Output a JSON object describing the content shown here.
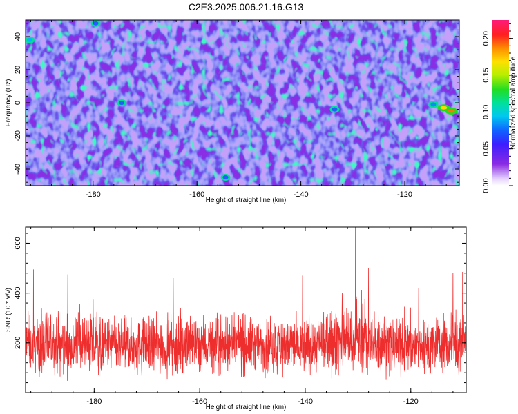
{
  "title": "C2E3.2025.006.21.16.G13",
  "chart_data": [
    {
      "type": "heatmap",
      "name": "spectrogram",
      "xlabel": "Height of straight line (km)",
      "ylabel": "Frequency (Hz)",
      "xlim": [
        -193,
        -109.5
      ],
      "ylim": [
        -50,
        50
      ],
      "xticks": [
        -180,
        -160,
        -140,
        -120
      ],
      "xticks_minor_step": 4,
      "yticks": [
        -40,
        -20,
        0,
        20,
        40
      ],
      "yticks_minor_step": 4,
      "colorbar": {
        "label": "Normalized spectral amplitude",
        "range": [
          0,
          0.225
        ],
        "ticks": [
          0.0,
          0.05,
          0.1,
          0.15,
          0.2
        ],
        "tick_labels": [
          "0.00",
          "0.05",
          "0.10",
          "0.15",
          "0.20"
        ]
      },
      "background_level": 0.025,
      "noise_peak_level": 0.09,
      "features": [
        {
          "x": -192.2,
          "y": 38,
          "value": 0.09
        },
        {
          "x": -112.5,
          "y": -3,
          "value": 0.17
        },
        {
          "x": -111.0,
          "y": -5,
          "value": 0.19
        },
        {
          "x": -114.5,
          "y": -1,
          "value": 0.08
        },
        {
          "x": -174.5,
          "y": 0,
          "value": 0.07
        },
        {
          "x": -154.5,
          "y": -45,
          "value": 0.07
        },
        {
          "x": -179.5,
          "y": 48,
          "value": 0.07
        },
        {
          "x": -133.5,
          "y": -4,
          "value": 0.07
        }
      ]
    },
    {
      "type": "line",
      "name": "snr",
      "xlabel": "Height of straight line (km)",
      "ylabel": "SNR (10 * v/v)",
      "xlim": [
        -193,
        -109.5
      ],
      "ylim": [
        0,
        665
      ],
      "xticks": [
        -180,
        -160,
        -140,
        -120
      ],
      "yticks": [
        200,
        400,
        600
      ],
      "color": "#ee2d2d",
      "series_summary": {
        "typical_min": 40,
        "typical_median": 190,
        "typical_max": 330
      },
      "peaks": [
        {
          "x": -191.5,
          "y": 495
        },
        {
          "x": -185.0,
          "y": 475
        },
        {
          "x": -165.0,
          "y": 460
        },
        {
          "x": -140.5,
          "y": 470
        },
        {
          "x": -133.0,
          "y": 400
        },
        {
          "x": -130.5,
          "y": 665
        },
        {
          "x": -128.0,
          "y": 500
        },
        {
          "x": -118.5,
          "y": 420
        },
        {
          "x": -112.0,
          "y": 480
        },
        {
          "x": -110.2,
          "y": 485
        }
      ]
    }
  ]
}
